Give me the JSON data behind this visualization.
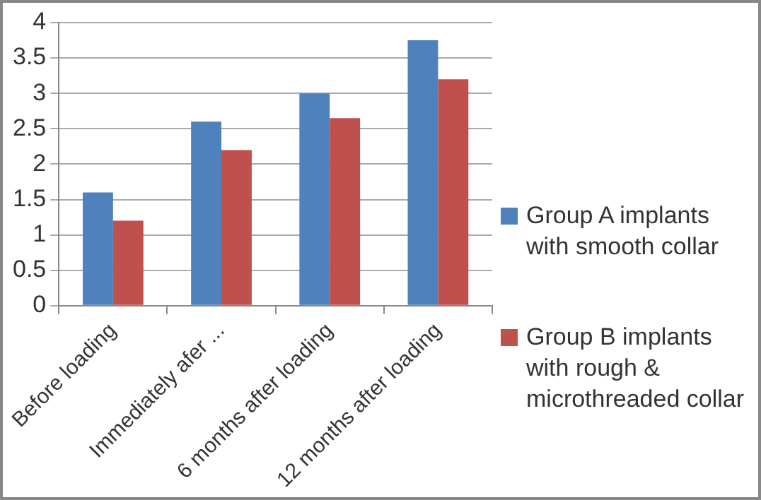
{
  "chart_data": {
    "type": "bar",
    "categories": [
      "Before loading",
      "Immediately afer ...",
      "6 months after loading",
      "12 months after loading"
    ],
    "series": [
      {
        "name": "Group A implants with smooth collar",
        "color": "#4f81bd",
        "values": [
          1.6,
          2.6,
          3.0,
          3.75
        ]
      },
      {
        "name": "Group B implants with rough & microthreaded collar",
        "color": "#c0504d",
        "values": [
          1.2,
          2.2,
          2.65,
          3.2
        ]
      }
    ],
    "ylim": [
      0,
      4
    ],
    "yticks": [
      0,
      0.5,
      1,
      1.5,
      2,
      2.5,
      3,
      3.5,
      4
    ],
    "grid": "y",
    "legend": "right"
  }
}
